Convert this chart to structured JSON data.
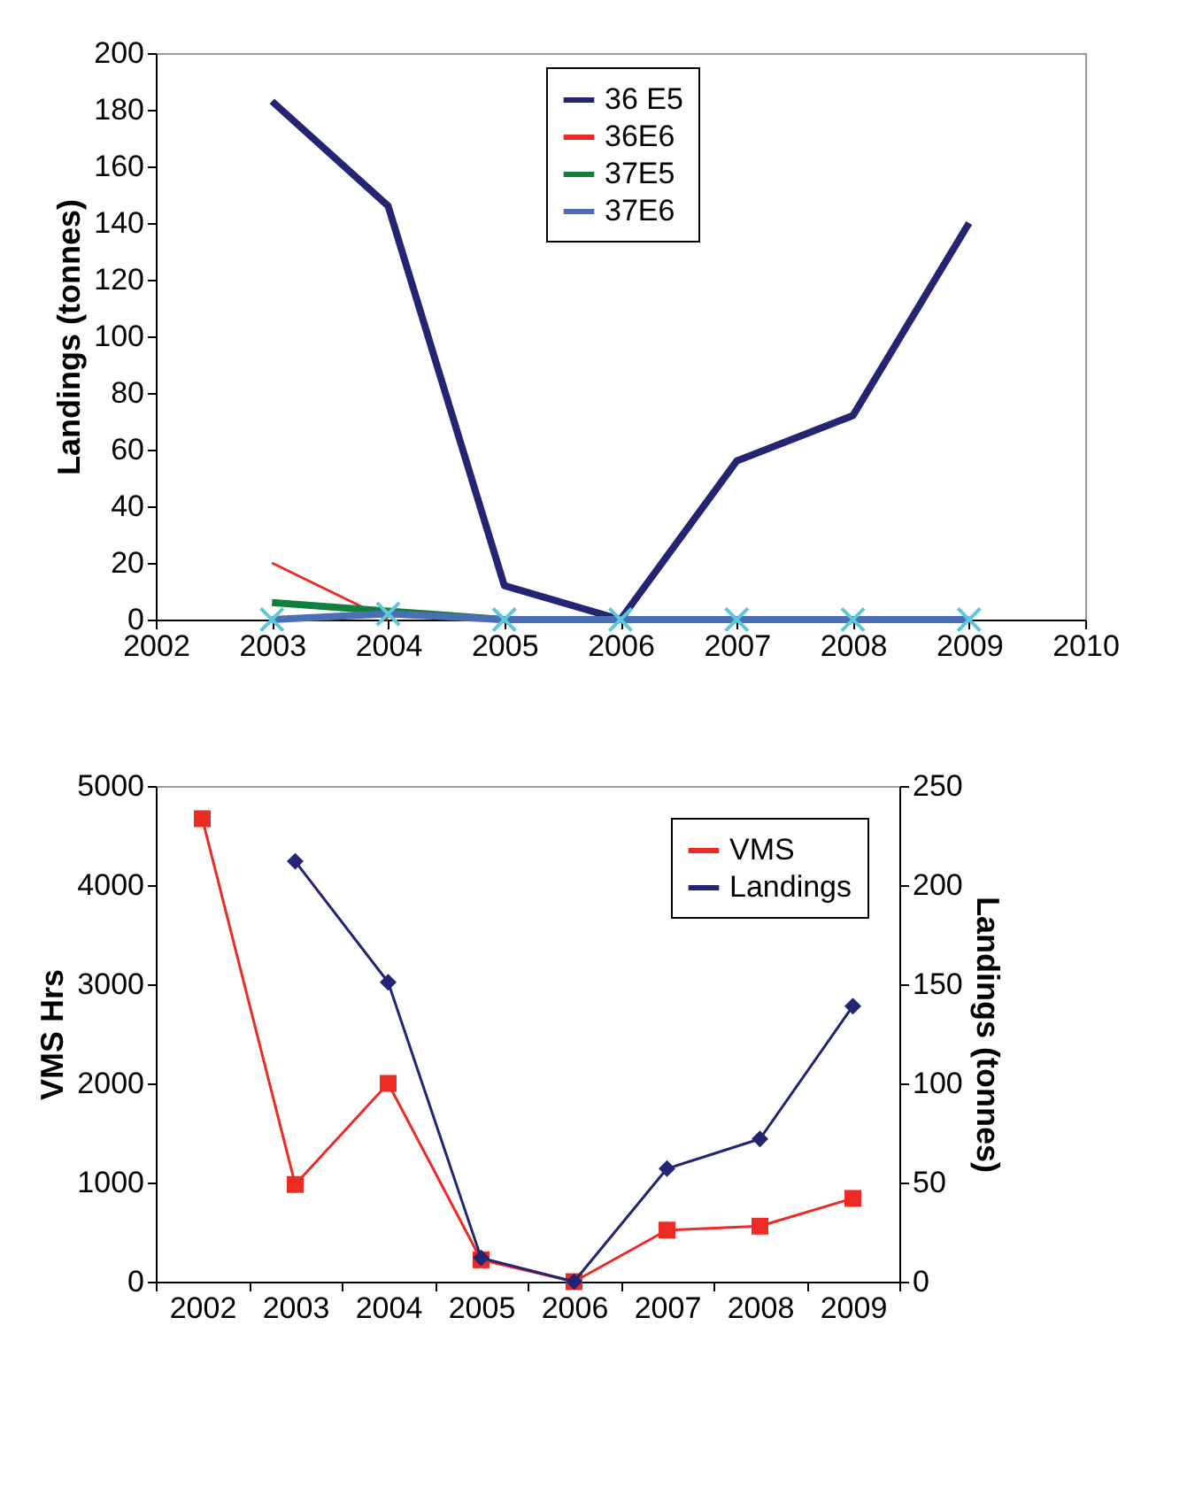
{
  "chart_data": [
    {
      "type": "line",
      "ylabel": "Landings (tonnes)",
      "x": [
        2003,
        2004,
        2005,
        2006,
        2007,
        2008,
        2009
      ],
      "xlim": [
        2002,
        2010
      ],
      "xticks": [
        2002,
        2003,
        2004,
        2005,
        2006,
        2007,
        2008,
        2009,
        2010
      ],
      "ylim": [
        0,
        200
      ],
      "yticks": [
        0,
        20,
        40,
        60,
        80,
        100,
        120,
        140,
        160,
        180,
        200
      ],
      "grid": false,
      "legend": "top",
      "series": [
        {
          "name": "36 E5",
          "color": "#232572",
          "marker": "none",
          "values": [
            183,
            146,
            12,
            0,
            56,
            72,
            140
          ]
        },
        {
          "name": "36E6",
          "color": "#ee2a24",
          "marker": "none",
          "values": [
            20,
            0,
            null,
            null,
            null,
            null,
            null
          ]
        },
        {
          "name": "37E5",
          "color": "#10803c",
          "marker": "none",
          "values": [
            6,
            3,
            0,
            null,
            null,
            null,
            null
          ]
        },
        {
          "name": "37E6",
          "color": "#4a6fb5",
          "marker": "cross",
          "values": [
            0,
            2,
            0,
            0,
            0,
            0,
            0
          ]
        }
      ]
    },
    {
      "type": "line",
      "ylabel": "VMS Hrs",
      "y2label": "Landings (tonnes)",
      "categories": [
        "2002",
        "2003",
        "2004",
        "2005",
        "2006",
        "2007",
        "2008",
        "2009"
      ],
      "ylim": [
        0,
        5000
      ],
      "yticks": [
        0,
        1000,
        2000,
        3000,
        4000,
        5000
      ],
      "y2lim": [
        0,
        250
      ],
      "y2ticks": [
        0,
        50,
        100,
        150,
        200,
        250
      ],
      "grid": false,
      "legend": "top right",
      "series": [
        {
          "name": "VMS",
          "color": "#ee2a24",
          "marker": "square",
          "values": [
            4670,
            980,
            2000,
            220,
            0,
            520,
            560,
            840
          ]
        },
        {
          "name": "Landings",
          "color": "#232572",
          "marker": "diamond",
          "axis": "y2",
          "values": [
            null,
            212,
            151,
            12,
            0,
            57,
            72,
            139
          ]
        }
      ]
    }
  ]
}
